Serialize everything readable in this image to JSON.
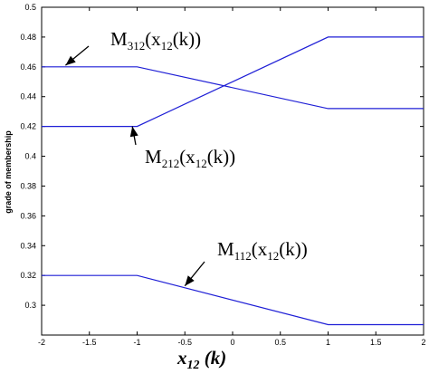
{
  "chart_data": {
    "type": "line",
    "xlabel": "x12 (k)",
    "xlabel_main": "x",
    "xlabel_sub": "12",
    "xlabel_rest": " (k)",
    "ylabel": "grade of membership",
    "xlim": [
      -2,
      2
    ],
    "ylim": [
      0.28,
      0.5
    ],
    "xticks": [
      -2,
      -1.5,
      -1,
      -0.5,
      0,
      0.5,
      1,
      1.5,
      2
    ],
    "xtick_labels": [
      "-2",
      "-1.5",
      "-1",
      "-0.5",
      "0",
      "0.5",
      "1",
      "1.5",
      "2"
    ],
    "yticks": [
      0.3,
      0.32,
      0.34,
      0.36,
      0.38,
      0.4,
      0.42,
      0.44,
      0.46,
      0.48,
      0.5
    ],
    "ytick_labels": [
      "0.3",
      "0.32",
      "0.34",
      "0.36",
      "0.38",
      "0.4",
      "0.42",
      "0.44",
      "0.46",
      "0.48",
      "0.5"
    ],
    "grid": false,
    "line_color": "#1f1fd6",
    "series": [
      {
        "x": [
          -2,
          -1,
          1,
          2
        ],
        "y": [
          0.46,
          0.46,
          0.432,
          0.432
        ]
      },
      {
        "x": [
          -2,
          -1,
          1,
          2
        ],
        "y": [
          0.42,
          0.42,
          0.48,
          0.48
        ]
      },
      {
        "x": [
          -2,
          -1,
          1,
          2
        ],
        "y": [
          0.32,
          0.32,
          0.287,
          0.287
        ]
      }
    ],
    "annotations": [
      {
        "main": "M",
        "sub": "312",
        "rest1": "(x",
        "sub2": "12",
        "rest2": "(k))",
        "text": "M312(x12(k))",
        "target": [
          -1.75,
          0.461
        ]
      },
      {
        "main": "M",
        "sub": "212",
        "rest1": "(x",
        "sub2": "12",
        "rest2": "(k))",
        "text": "M212(x12(k))",
        "target": [
          -1.05,
          0.42
        ]
      },
      {
        "main": "M",
        "sub": "112",
        "rest1": "(x",
        "sub2": "12",
        "rest2": "(k))",
        "text": "M112(x12(k))",
        "target": [
          -0.5,
          0.313
        ]
      }
    ]
  }
}
